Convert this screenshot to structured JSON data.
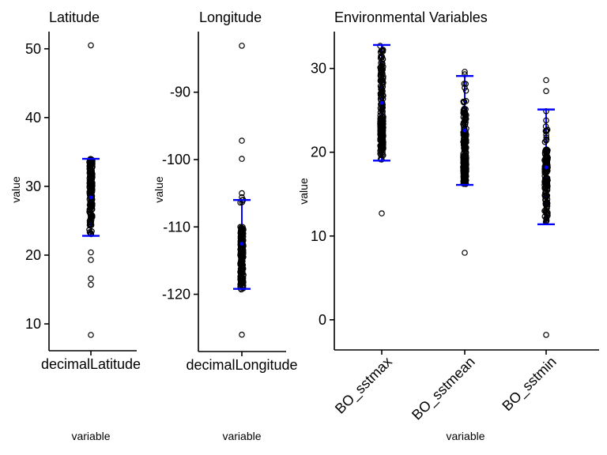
{
  "colors": {
    "background": "#ffffff",
    "points": "#000000",
    "error_bars": "#0000ff",
    "axis": "#000000",
    "text": "#000000"
  },
  "chart_data": [
    {
      "type": "scatter",
      "title": "Latitude",
      "ylabel": "value",
      "xlabel": "variable",
      "grid": false,
      "legend": "none",
      "yticks": [
        10,
        20,
        30,
        40,
        50
      ],
      "ylim": [
        6.1,
        52.5
      ],
      "categories": [
        "decimalLatitude"
      ],
      "series": [
        {
          "category": "decimalLatitude",
          "summary": {
            "mean": 28.4,
            "upper_cap": 34.0,
            "lower_cap": 22.8
          },
          "dense_ranges": [
            {
              "min": 27.0,
              "max": 34.0,
              "count": 150
            },
            {
              "min": 24.5,
              "max": 27.0,
              "count": 25
            },
            {
              "min": 23.0,
              "max": 24.5,
              "count": 10
            }
          ],
          "outliers": [
            50.5,
            20.4,
            19.3,
            16.6,
            15.7,
            8.4
          ]
        }
      ]
    },
    {
      "type": "scatter",
      "title": "Longitude",
      "ylabel": "value",
      "xlabel": "variable",
      "grid": false,
      "legend": "none",
      "yticks": [
        -120,
        -110,
        -100,
        -90
      ],
      "ylim": [
        -128.5,
        -81.0
      ],
      "categories": [
        "decimalLongitude"
      ],
      "series": [
        {
          "category": "decimalLongitude",
          "summary": {
            "mean": -112.5,
            "upper_cap": -106.0,
            "lower_cap": -119.2
          },
          "dense_ranges": [
            {
              "min": -118.8,
              "max": -110.0,
              "count": 170
            },
            {
              "min": -119.3,
              "max": -118.8,
              "count": 6
            },
            {
              "min": -106.4,
              "max": -105.9,
              "count": 4
            }
          ],
          "outliers": [
            -83.1,
            -97.2,
            -99.9,
            -105.0,
            -105.6,
            -126.0
          ]
        }
      ]
    },
    {
      "type": "scatter",
      "title": "Environmental Variables",
      "ylabel": "value",
      "xlabel": "variable",
      "grid": false,
      "legend": "none",
      "yticks": [
        0,
        10,
        20,
        30
      ],
      "ylim": [
        -3.6,
        34.4
      ],
      "categories": [
        "BO_sstmax",
        "BO_sstmean",
        "BO_sstmin"
      ],
      "series": [
        {
          "category": "BO_sstmax",
          "summary": {
            "mean": 25.9,
            "upper_cap": 32.8,
            "lower_cap": 19.0
          },
          "dense_ranges": [
            {
              "min": 20.3,
              "max": 24.2,
              "count": 150
            },
            {
              "min": 24.2,
              "max": 29.3,
              "count": 55
            },
            {
              "min": 29.3,
              "max": 32.7,
              "count": 35
            },
            {
              "min": 19.1,
              "max": 20.3,
              "count": 10
            }
          ],
          "outliers": [
            12.7
          ]
        },
        {
          "category": "BO_sstmean",
          "summary": {
            "mean": 22.6,
            "upper_cap": 29.1,
            "lower_cap": 16.1
          },
          "dense_ranges": [
            {
              "min": 16.2,
              "max": 19.6,
              "count": 150
            },
            {
              "min": 19.6,
              "max": 22.6,
              "count": 60
            },
            {
              "min": 22.6,
              "max": 25.2,
              "count": 35
            },
            {
              "min": 25.8,
              "max": 28.2,
              "count": 8
            }
          ],
          "outliers": [
            29.6,
            29.3,
            8.0
          ]
        },
        {
          "category": "BO_sstmin",
          "summary": {
            "mean": 18.2,
            "upper_cap": 25.1,
            "lower_cap": 11.4
          },
          "dense_ranges": [
            {
              "min": 13.6,
              "max": 20.4,
              "count": 140
            },
            {
              "min": 11.6,
              "max": 13.6,
              "count": 18
            },
            {
              "min": 20.6,
              "max": 23.2,
              "count": 8
            }
          ],
          "outliers": [
            28.6,
            27.3,
            24.9,
            23.8,
            22.5,
            21.4,
            -1.8
          ]
        }
      ]
    }
  ]
}
